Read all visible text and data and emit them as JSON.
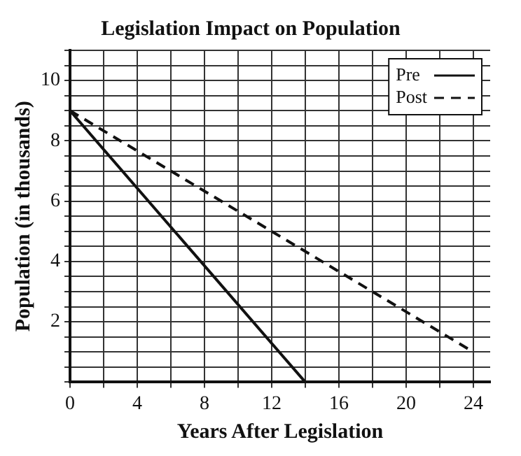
{
  "chart_data": {
    "type": "line",
    "title": "Legislation Impact on Population",
    "xlabel": "Years After Legislation",
    "ylabel": "Population (in thousands)",
    "x": [
      0,
      14
    ],
    "series": [
      {
        "name": "Pre",
        "color": "#111111",
        "values": [
          9,
          0
        ],
        "line_style": "solid"
      },
      {
        "name": "Post",
        "color": "#111111",
        "x": [
          0,
          24
        ],
        "values": [
          9,
          1
        ],
        "line_style": "dashed"
      }
    ],
    "xlim": [
      0,
      25
    ],
    "ylim": [
      0,
      11
    ],
    "xticks": [
      0,
      {
        "value": 2,
        "label": null
      },
      4,
      {
        "value": 6,
        "label": null
      },
      8,
      {
        "value": 10,
        "label": null
      },
      12,
      {
        "value": 14,
        "label": null
      },
      16,
      {
        "value": 18,
        "label": null
      },
      20,
      {
        "value": 22,
        "label": null
      },
      24
    ],
    "yticks": [
      {
        "value": 0,
        "label": null
      },
      {
        "value": 0.5,
        "label": null
      },
      {
        "value": 1,
        "label": null
      },
      {
        "value": 1.5,
        "label": null
      },
      2,
      {
        "value": 2.5,
        "label": null
      },
      {
        "value": 3,
        "label": null
      },
      {
        "value": 3.5,
        "label": null
      },
      4,
      {
        "value": 4.5,
        "label": null
      },
      {
        "value": 5,
        "label": null
      },
      {
        "value": 5.5,
        "label": null
      },
      6,
      {
        "value": 6.5,
        "label": null
      },
      {
        "value": 7,
        "label": null
      },
      {
        "value": 7.5,
        "label": null
      },
      8,
      {
        "value": 8.5,
        "label": null
      },
      {
        "value": 9,
        "label": null
      },
      {
        "value": 9.5,
        "label": null
      },
      10,
      {
        "value": 10.5,
        "label": null
      },
      {
        "value": 11,
        "label": null
      }
    ],
    "grid": true,
    "legend": "top right",
    "marker": "none"
  }
}
